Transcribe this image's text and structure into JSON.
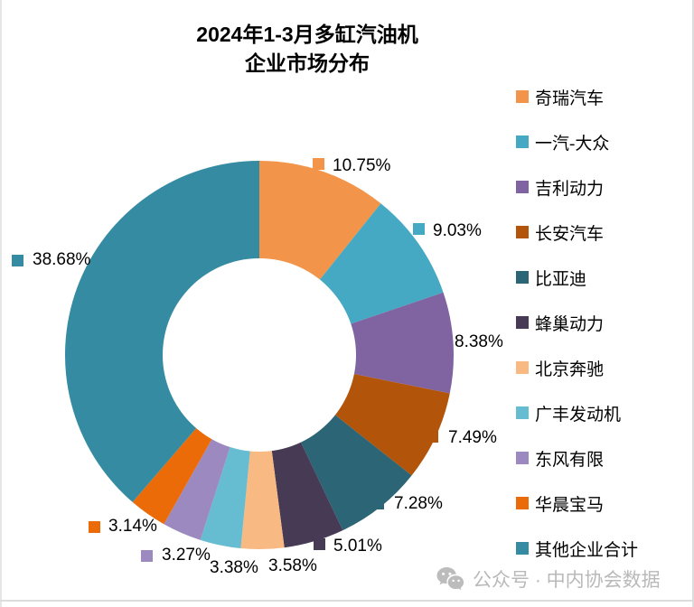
{
  "title": {
    "line1": "2024年1-3月多缸汽油机",
    "line2": "企业市场分布"
  },
  "chart_data": {
    "type": "pie",
    "subtype": "donut",
    "title": "2024年1-3月多缸汽油机企业市场分布",
    "unit": "%",
    "start_angle": "top-clockwise",
    "legend_position": "right",
    "categories": [
      "奇瑞汽车",
      "一汽-大众",
      "吉利动力",
      "长安汽车",
      "比亚迪",
      "蜂巢动力",
      "北京奔驰",
      "广丰发动机",
      "东风有限",
      "华晨宝马",
      "其他企业合计"
    ],
    "values": [
      10.75,
      9.03,
      8.38,
      7.49,
      7.28,
      5.01,
      3.58,
      3.38,
      3.27,
      3.14,
      38.68
    ],
    "colors": [
      "#F2944A",
      "#45A9C3",
      "#8064A2",
      "#B25409",
      "#2C6576",
      "#463A55",
      "#F9B983",
      "#66BDD1",
      "#9C89C0",
      "#EC6B09",
      "#358CA2"
    ],
    "data_labels": [
      "10.75%",
      "9.03%",
      "8.38%",
      "7.49%",
      "7.28%",
      "5.01%",
      "3.58%",
      "3.38%",
      "3.27%",
      "3.14%",
      "38.68%"
    ]
  },
  "watermark": {
    "icon": "wechat-icon",
    "text": "公众号 · 中内协会数据"
  }
}
